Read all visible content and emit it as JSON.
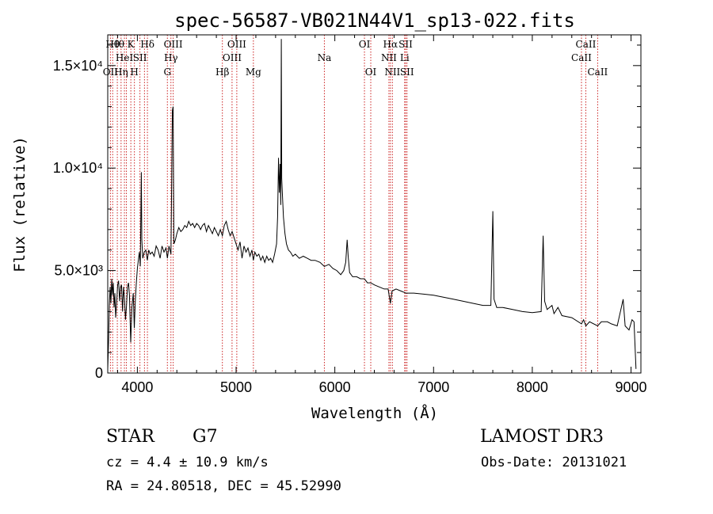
{
  "chart_data": {
    "type": "line",
    "title": "spec-56587-VB021N44V1_sp13-022.fits",
    "xlabel": "Wavelength (Å)",
    "ylabel": "Flux (relative)",
    "xlim": [
      3700,
      9100
    ],
    "ylim": [
      0,
      16500
    ],
    "x_ticks": [
      4000,
      5000,
      6000,
      7000,
      8000,
      9000
    ],
    "y_ticks": [
      {
        "value": 0,
        "label": "0"
      },
      {
        "value": 5000,
        "label": "5.0×10³"
      },
      {
        "value": 10000,
        "label": "1.0×10⁴"
      },
      {
        "value": 15000,
        "label": "1.5×10⁴"
      }
    ],
    "spectral_lines": [
      {
        "wave": 3727,
        "label": "OII",
        "row": 2
      },
      {
        "wave": 3750,
        "label": "Hθ",
        "row": 0
      },
      {
        "wave": 3797,
        "label": "Hθ",
        "row": 0
      },
      {
        "wave": 3835,
        "label": "Hη",
        "row": 2
      },
      {
        "wave": 3869,
        "label": "HeI",
        "row": 1
      },
      {
        "wave": 3889,
        "label": "",
        "row": 1
      },
      {
        "wave": 3934,
        "label": "K",
        "row": 0
      },
      {
        "wave": 3970,
        "label": "H",
        "row": 2
      },
      {
        "wave": 4026,
        "label": "SII",
        "row": 1
      },
      {
        "wave": 4072,
        "label": "",
        "row": 1
      },
      {
        "wave": 4102,
        "label": "Hδ",
        "row": 0
      },
      {
        "wave": 4304,
        "label": "G",
        "row": 2
      },
      {
        "wave": 4340,
        "label": "Hγ",
        "row": 1
      },
      {
        "wave": 4363,
        "label": "OIII",
        "row": 0
      },
      {
        "wave": 4861,
        "label": "Hβ",
        "row": 2
      },
      {
        "wave": 4959,
        "label": "OIII",
        "row": 1
      },
      {
        "wave": 5007,
        "label": "OIII",
        "row": 0
      },
      {
        "wave": 5175,
        "label": "Mg",
        "row": 2
      },
      {
        "wave": 5894,
        "label": "Na",
        "row": 1
      },
      {
        "wave": 6300,
        "label": "OI",
        "row": 0
      },
      {
        "wave": 6364,
        "label": "OI",
        "row": 2
      },
      {
        "wave": 6548,
        "label": "NII",
        "row": 1
      },
      {
        "wave": 6563,
        "label": "Hα",
        "row": 0
      },
      {
        "wave": 6583,
        "label": "NII",
        "row": 2
      },
      {
        "wave": 6707,
        "label": "Li",
        "row": 1
      },
      {
        "wave": 6717,
        "label": "SII",
        "row": 0
      },
      {
        "wave": 6731,
        "label": "SII",
        "row": 2
      },
      {
        "wave": 8498,
        "label": "CaII",
        "row": 1
      },
      {
        "wave": 8542,
        "label": "CaII",
        "row": 0
      },
      {
        "wave": 8662,
        "label": "CaII",
        "row": 2
      }
    ],
    "series": [
      {
        "name": "flux",
        "points": [
          [
            3700,
            200
          ],
          [
            3708,
            1500
          ],
          [
            3716,
            3300
          ],
          [
            3724,
            4200
          ],
          [
            3732,
            3400
          ],
          [
            3740,
            4600
          ],
          [
            3748,
            3800
          ],
          [
            3756,
            4400
          ],
          [
            3764,
            3200
          ],
          [
            3772,
            3900
          ],
          [
            3780,
            2700
          ],
          [
            3790,
            3400
          ],
          [
            3800,
            4300
          ],
          [
            3810,
            4500
          ],
          [
            3820,
            3500
          ],
          [
            3830,
            4200
          ],
          [
            3840,
            4300
          ],
          [
            3850,
            3000
          ],
          [
            3860,
            4200
          ],
          [
            3870,
            3600
          ],
          [
            3880,
            2600
          ],
          [
            3890,
            3300
          ],
          [
            3900,
            4200
          ],
          [
            3910,
            4400
          ],
          [
            3920,
            3800
          ],
          [
            3933,
            1500
          ],
          [
            3945,
            3200
          ],
          [
            3958,
            3900
          ],
          [
            3969,
            2200
          ],
          [
            3980,
            3600
          ],
          [
            3990,
            4400
          ],
          [
            4000,
            5100
          ],
          [
            4010,
            5500
          ],
          [
            4020,
            5900
          ],
          [
            4030,
            5200
          ],
          [
            4040,
            9800
          ],
          [
            4045,
            6500
          ],
          [
            4055,
            5600
          ],
          [
            4070,
            5900
          ],
          [
            4085,
            6000
          ],
          [
            4101,
            5500
          ],
          [
            4115,
            6000
          ],
          [
            4130,
            5800
          ],
          [
            4150,
            5900
          ],
          [
            4170,
            5700
          ],
          [
            4190,
            6200
          ],
          [
            4210,
            6000
          ],
          [
            4230,
            5600
          ],
          [
            4250,
            6200
          ],
          [
            4270,
            5900
          ],
          [
            4290,
            6100
          ],
          [
            4304,
            5600
          ],
          [
            4320,
            6200
          ],
          [
            4340,
            5800
          ],
          [
            4355,
            12800
          ],
          [
            4362,
            13000
          ],
          [
            4370,
            6300
          ],
          [
            4385,
            6500
          ],
          [
            4400,
            6800
          ],
          [
            4420,
            7100
          ],
          [
            4440,
            6900
          ],
          [
            4460,
            7000
          ],
          [
            4480,
            7200
          ],
          [
            4500,
            7100
          ],
          [
            4520,
            7400
          ],
          [
            4540,
            7200
          ],
          [
            4560,
            7300
          ],
          [
            4580,
            7100
          ],
          [
            4600,
            7300
          ],
          [
            4620,
            7200
          ],
          [
            4640,
            7000
          ],
          [
            4660,
            7200
          ],
          [
            4680,
            7300
          ],
          [
            4700,
            6900
          ],
          [
            4720,
            7200
          ],
          [
            4740,
            7000
          ],
          [
            4760,
            6800
          ],
          [
            4780,
            7100
          ],
          [
            4800,
            6900
          ],
          [
            4820,
            6700
          ],
          [
            4840,
            7000
          ],
          [
            4861,
            6700
          ],
          [
            4880,
            7200
          ],
          [
            4900,
            7400
          ],
          [
            4920,
            7000
          ],
          [
            4940,
            6700
          ],
          [
            4960,
            6900
          ],
          [
            4980,
            6600
          ],
          [
            5000,
            6300
          ],
          [
            5020,
            6000
          ],
          [
            5040,
            6400
          ],
          [
            5060,
            5600
          ],
          [
            5080,
            6200
          ],
          [
            5100,
            5900
          ],
          [
            5120,
            6100
          ],
          [
            5140,
            5700
          ],
          [
            5160,
            6000
          ],
          [
            5175,
            5500
          ],
          [
            5190,
            5900
          ],
          [
            5210,
            5700
          ],
          [
            5230,
            5800
          ],
          [
            5250,
            5500
          ],
          [
            5270,
            5700
          ],
          [
            5290,
            5400
          ],
          [
            5310,
            5700
          ],
          [
            5330,
            5500
          ],
          [
            5350,
            5600
          ],
          [
            5370,
            5400
          ],
          [
            5390,
            5800
          ],
          [
            5410,
            6300
          ],
          [
            5420,
            7600
          ],
          [
            5430,
            10500
          ],
          [
            5438,
            8800
          ],
          [
            5446,
            10200
          ],
          [
            5452,
            8200
          ],
          [
            5458,
            16300
          ],
          [
            5462,
            9500
          ],
          [
            5470,
            8600
          ],
          [
            5480,
            7600
          ],
          [
            5495,
            6800
          ],
          [
            5510,
            6300
          ],
          [
            5530,
            6000
          ],
          [
            5550,
            5900
          ],
          [
            5575,
            5700
          ],
          [
            5600,
            5800
          ],
          [
            5640,
            5600
          ],
          [
            5680,
            5700
          ],
          [
            5720,
            5600
          ],
          [
            5760,
            5500
          ],
          [
            5800,
            5500
          ],
          [
            5850,
            5400
          ],
          [
            5894,
            5200
          ],
          [
            5940,
            5300
          ],
          [
            5980,
            5100
          ],
          [
            6020,
            5000
          ],
          [
            6060,
            4800
          ],
          [
            6090,
            5000
          ],
          [
            6110,
            5400
          ],
          [
            6125,
            6500
          ],
          [
            6135,
            5700
          ],
          [
            6150,
            4900
          ],
          [
            6180,
            4700
          ],
          [
            6220,
            4700
          ],
          [
            6260,
            4600
          ],
          [
            6300,
            4600
          ],
          [
            6330,
            4400
          ],
          [
            6364,
            4400
          ],
          [
            6400,
            4300
          ],
          [
            6450,
            4200
          ],
          [
            6500,
            4100
          ],
          [
            6540,
            4100
          ],
          [
            6563,
            3400
          ],
          [
            6580,
            4000
          ],
          [
            6620,
            4100
          ],
          [
            6670,
            4000
          ],
          [
            6720,
            3900
          ],
          [
            6800,
            3900
          ],
          [
            6900,
            3850
          ],
          [
            7000,
            3800
          ],
          [
            7100,
            3700
          ],
          [
            7200,
            3600
          ],
          [
            7300,
            3500
          ],
          [
            7400,
            3400
          ],
          [
            7500,
            3300
          ],
          [
            7580,
            3300
          ],
          [
            7600,
            7900
          ],
          [
            7612,
            3600
          ],
          [
            7640,
            3200
          ],
          [
            7700,
            3200
          ],
          [
            7800,
            3100
          ],
          [
            7900,
            3000
          ],
          [
            8000,
            2950
          ],
          [
            8090,
            3000
          ],
          [
            8110,
            6700
          ],
          [
            8125,
            3500
          ],
          [
            8150,
            3100
          ],
          [
            8200,
            3300
          ],
          [
            8220,
            2900
          ],
          [
            8260,
            3200
          ],
          [
            8300,
            2800
          ],
          [
            8400,
            2700
          ],
          [
            8498,
            2400
          ],
          [
            8520,
            2600
          ],
          [
            8542,
            2300
          ],
          [
            8580,
            2500
          ],
          [
            8662,
            2300
          ],
          [
            8700,
            2500
          ],
          [
            8760,
            2500
          ],
          [
            8800,
            2400
          ],
          [
            8860,
            2300
          ],
          [
            8920,
            3600
          ],
          [
            8940,
            2300
          ],
          [
            8980,
            2100
          ],
          [
            9010,
            2600
          ],
          [
            9030,
            2500
          ],
          [
            9050,
            200
          ]
        ]
      }
    ]
  },
  "info": {
    "object": "STAR",
    "subclass": "G7",
    "survey": "LAMOST DR3",
    "redshift": "cz = 4.4 ± 10.9 km/s",
    "obs_date": "Obs-Date: 20131021",
    "coords": "RA =  24.80518, DEC =  45.52990"
  }
}
